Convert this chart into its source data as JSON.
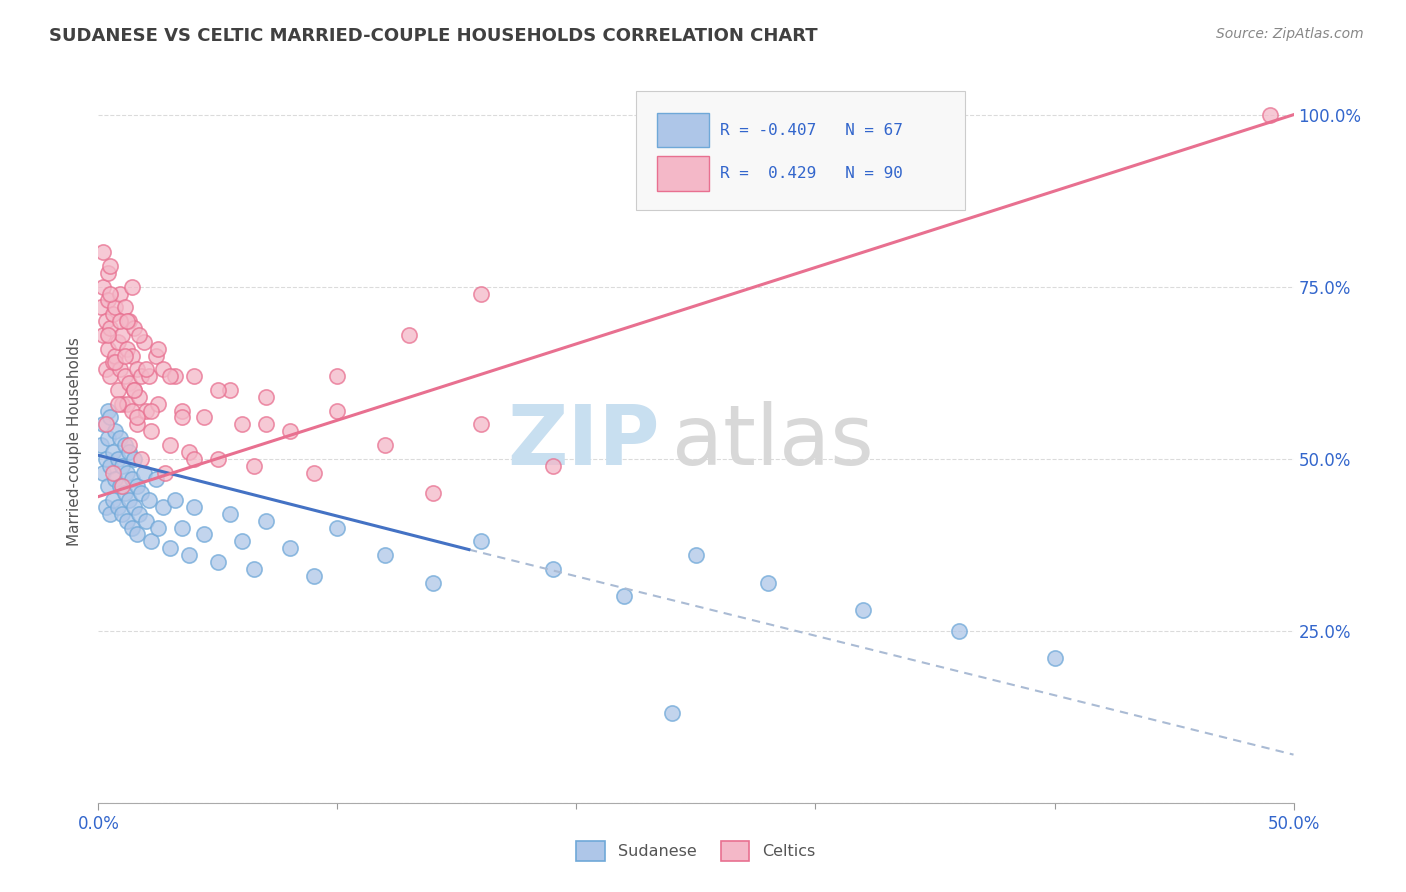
{
  "title": "SUDANESE VS CELTIC MARRIED-COUPLE HOUSEHOLDS CORRELATION CHART",
  "source": "Source: ZipAtlas.com",
  "ylabel": "Married-couple Households",
  "bottom_legend": [
    "Sudanese",
    "Celtics"
  ],
  "R_blue": -0.407,
  "N_blue": 67,
  "R_pink": 0.429,
  "N_pink": 90,
  "color_blue_fill": "#aec6e8",
  "color_blue_edge": "#6fa8d8",
  "color_pink_fill": "#f4b8c8",
  "color_pink_edge": "#e87090",
  "color_trend_blue": "#4472c4",
  "color_trend_pink": "#e87090",
  "color_trend_dashed": "#aabbd4",
  "xlim": [
    0.0,
    0.5
  ],
  "ylim": [
    0.0,
    1.05
  ],
  "blue_trend_x0": 0.0,
  "blue_trend_y0": 0.505,
  "blue_trend_solid_end_x": 0.155,
  "blue_trend_solid_end_y": 0.368,
  "blue_trend_x1": 0.5,
  "blue_trend_y1": 0.07,
  "pink_trend_x0": 0.0,
  "pink_trend_y0": 0.445,
  "pink_trend_x1": 0.5,
  "pink_trend_y1": 1.0,
  "background_color": "#ffffff",
  "grid_color": "#cccccc",
  "title_color": "#404040",
  "source_color": "#888888",
  "blue_scatter_x": [
    0.001,
    0.002,
    0.002,
    0.003,
    0.003,
    0.004,
    0.004,
    0.004,
    0.005,
    0.005,
    0.005,
    0.006,
    0.006,
    0.007,
    0.007,
    0.008,
    0.008,
    0.009,
    0.009,
    0.01,
    0.01,
    0.011,
    0.011,
    0.012,
    0.012,
    0.013,
    0.013,
    0.014,
    0.014,
    0.015,
    0.015,
    0.016,
    0.016,
    0.017,
    0.018,
    0.019,
    0.02,
    0.021,
    0.022,
    0.024,
    0.025,
    0.027,
    0.03,
    0.032,
    0.035,
    0.038,
    0.04,
    0.044,
    0.05,
    0.055,
    0.06,
    0.065,
    0.07,
    0.08,
    0.09,
    0.1,
    0.12,
    0.14,
    0.16,
    0.19,
    0.22,
    0.25,
    0.28,
    0.32,
    0.36,
    0.4,
    0.24
  ],
  "blue_scatter_y": [
    0.52,
    0.48,
    0.55,
    0.43,
    0.5,
    0.46,
    0.53,
    0.57,
    0.42,
    0.49,
    0.56,
    0.44,
    0.51,
    0.47,
    0.54,
    0.43,
    0.5,
    0.46,
    0.53,
    0.42,
    0.49,
    0.45,
    0.52,
    0.41,
    0.48,
    0.44,
    0.51,
    0.4,
    0.47,
    0.43,
    0.5,
    0.39,
    0.46,
    0.42,
    0.45,
    0.48,
    0.41,
    0.44,
    0.38,
    0.47,
    0.4,
    0.43,
    0.37,
    0.44,
    0.4,
    0.36,
    0.43,
    0.39,
    0.35,
    0.42,
    0.38,
    0.34,
    0.41,
    0.37,
    0.33,
    0.4,
    0.36,
    0.32,
    0.38,
    0.34,
    0.3,
    0.36,
    0.32,
    0.28,
    0.25,
    0.21,
    0.13
  ],
  "pink_scatter_x": [
    0.001,
    0.002,
    0.002,
    0.003,
    0.003,
    0.004,
    0.004,
    0.004,
    0.005,
    0.005,
    0.005,
    0.006,
    0.006,
    0.007,
    0.007,
    0.008,
    0.008,
    0.009,
    0.009,
    0.01,
    0.01,
    0.011,
    0.011,
    0.012,
    0.012,
    0.013,
    0.013,
    0.014,
    0.014,
    0.015,
    0.015,
    0.016,
    0.016,
    0.017,
    0.018,
    0.019,
    0.02,
    0.021,
    0.022,
    0.024,
    0.025,
    0.027,
    0.03,
    0.032,
    0.035,
    0.038,
    0.04,
    0.044,
    0.05,
    0.055,
    0.06,
    0.065,
    0.07,
    0.08,
    0.09,
    0.1,
    0.12,
    0.14,
    0.16,
    0.19,
    0.002,
    0.003,
    0.004,
    0.005,
    0.006,
    0.007,
    0.008,
    0.009,
    0.01,
    0.011,
    0.012,
    0.013,
    0.014,
    0.015,
    0.016,
    0.017,
    0.018,
    0.02,
    0.022,
    0.025,
    0.028,
    0.03,
    0.035,
    0.04,
    0.05,
    0.07,
    0.1,
    0.13,
    0.16,
    0.49
  ],
  "pink_scatter_y": [
    0.72,
    0.68,
    0.75,
    0.63,
    0.7,
    0.66,
    0.73,
    0.77,
    0.62,
    0.69,
    0.78,
    0.64,
    0.71,
    0.65,
    0.72,
    0.6,
    0.67,
    0.63,
    0.74,
    0.58,
    0.68,
    0.62,
    0.72,
    0.58,
    0.66,
    0.61,
    0.7,
    0.57,
    0.65,
    0.6,
    0.69,
    0.55,
    0.63,
    0.59,
    0.62,
    0.67,
    0.57,
    0.62,
    0.54,
    0.65,
    0.58,
    0.63,
    0.52,
    0.62,
    0.57,
    0.51,
    0.62,
    0.56,
    0.5,
    0.6,
    0.55,
    0.49,
    0.59,
    0.54,
    0.48,
    0.57,
    0.52,
    0.45,
    0.55,
    0.49,
    0.8,
    0.55,
    0.68,
    0.74,
    0.48,
    0.64,
    0.58,
    0.7,
    0.46,
    0.65,
    0.7,
    0.52,
    0.75,
    0.6,
    0.56,
    0.68,
    0.5,
    0.63,
    0.57,
    0.66,
    0.48,
    0.62,
    0.56,
    0.5,
    0.6,
    0.55,
    0.62,
    0.68,
    0.74,
    1.0
  ],
  "watermark_zip_color": "#c8dff0",
  "watermark_atlas_color": "#d8d8d8"
}
